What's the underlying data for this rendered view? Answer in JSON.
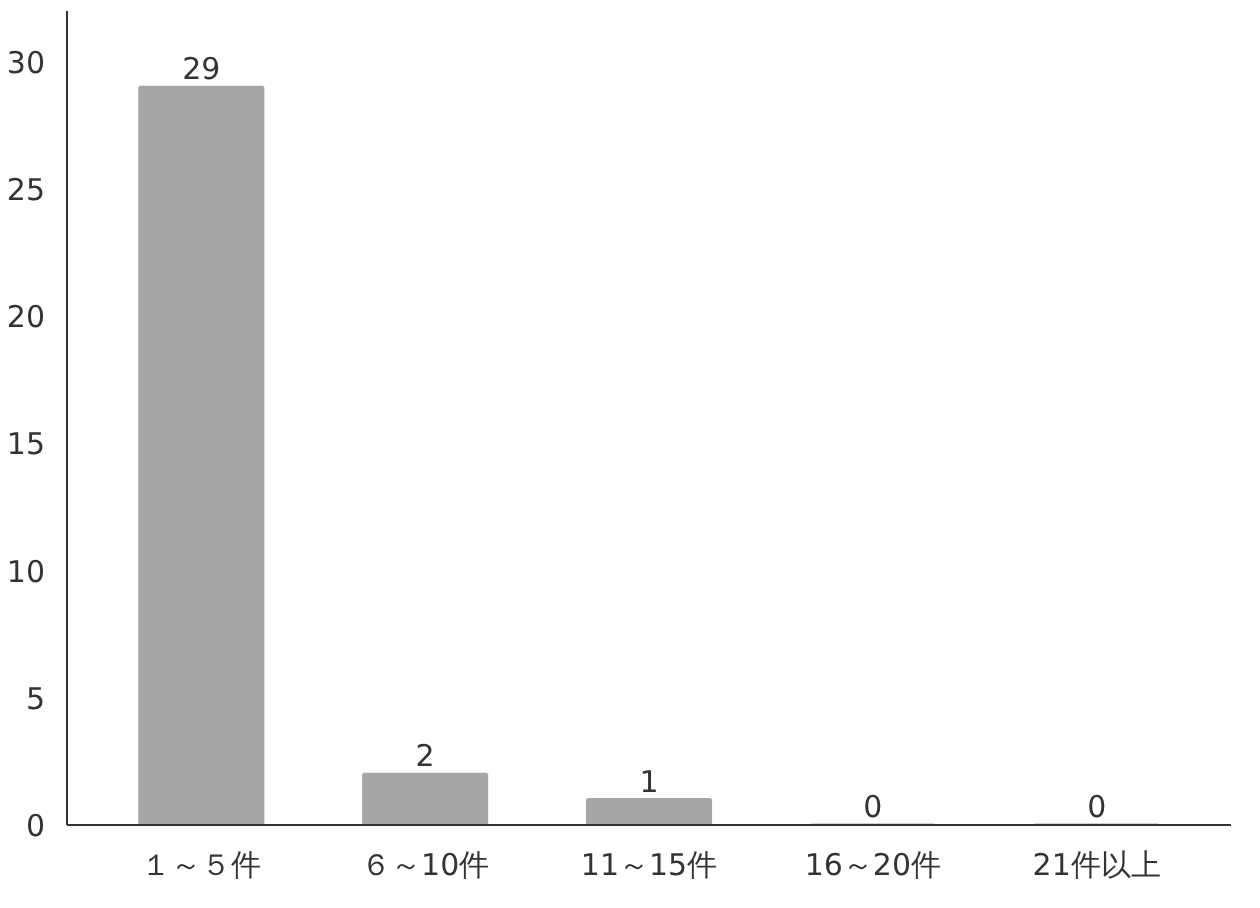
{
  "chart_data": {
    "type": "bar",
    "categories": [
      "１～５件",
      "６～10件",
      "11～15件",
      "16～20件",
      "21件以上"
    ],
    "values": [
      29,
      2,
      1,
      0,
      0
    ],
    "color": "#a6a6a6",
    "ylim": [
      0,
      32
    ],
    "yticks": [
      0,
      5,
      10,
      15,
      20,
      25,
      30
    ],
    "grid": false,
    "data_labels": true
  }
}
